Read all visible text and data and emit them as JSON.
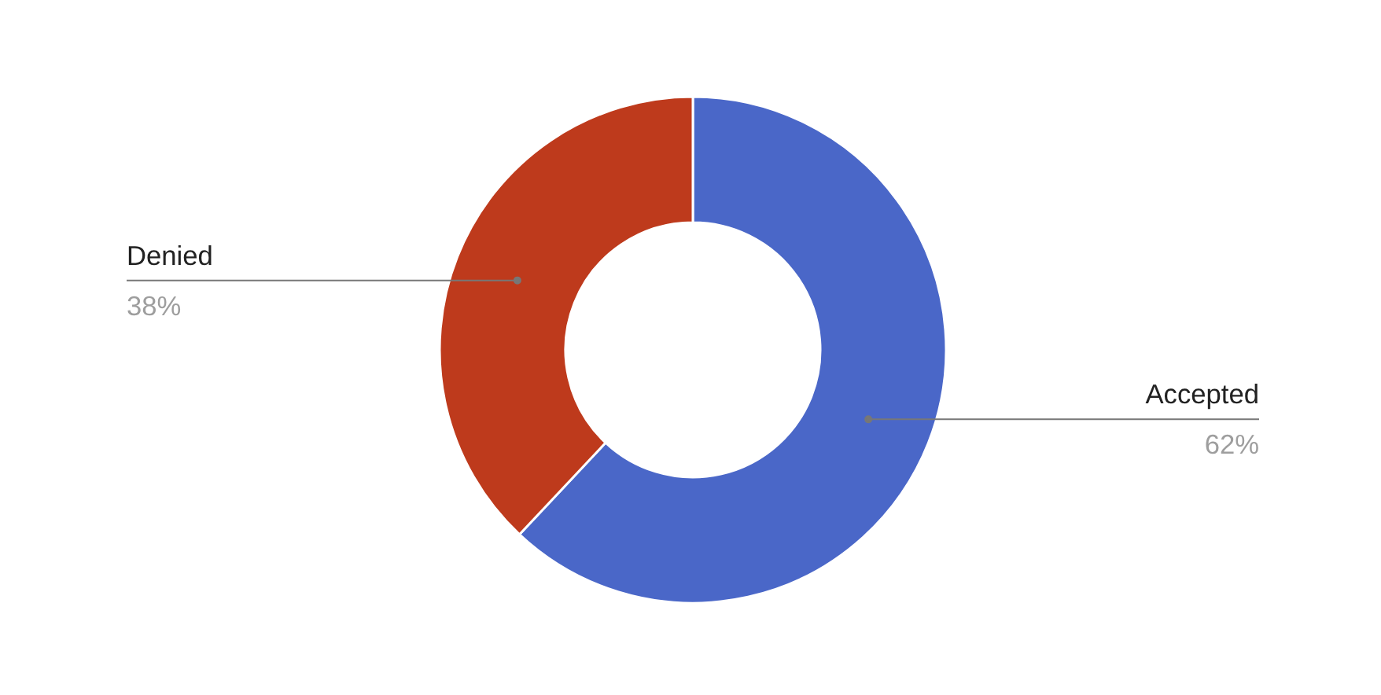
{
  "chart_data": {
    "type": "donut",
    "categories": [
      "Accepted",
      "Denied"
    ],
    "values": [
      62,
      38
    ],
    "colors": [
      "#4a67c8",
      "#be3a1c"
    ],
    "value_labels": [
      "62%",
      "38%"
    ]
  }
}
